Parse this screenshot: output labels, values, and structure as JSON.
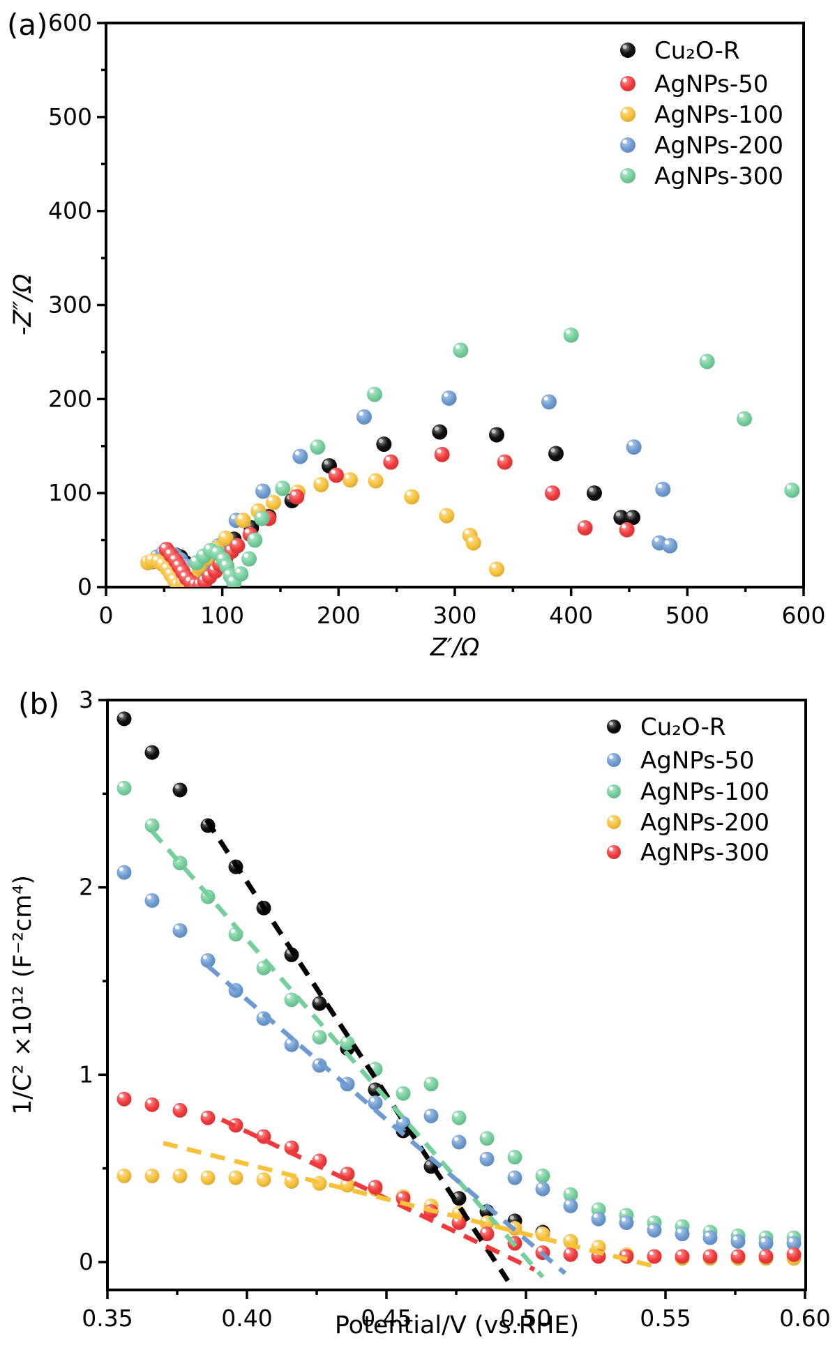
{
  "figure": {
    "background": "#ffffff",
    "panel_a_label": "(a)",
    "panel_b_label": "(b)"
  },
  "chart_data": [
    {
      "panel": "(a)",
      "type": "scatter",
      "xlabel": "Z′/Ω",
      "ylabel": "-Z″/Ω",
      "xlim": [
        0,
        600
      ],
      "ylim": [
        0,
        600
      ],
      "xticks": [
        "0",
        "100",
        "200",
        "300",
        "400",
        "500",
        "600"
      ],
      "yticks": [
        "0",
        "100",
        "200",
        "300",
        "400",
        "500",
        "600"
      ],
      "x_minor": [
        50,
        150,
        250,
        350,
        450,
        550
      ],
      "y_minor": [
        50,
        150,
        250,
        350,
        450,
        550
      ],
      "grid": false,
      "legend_position": "top-right",
      "legend_order": [
        0,
        1,
        2,
        3,
        4
      ],
      "draw_order": [
        0,
        3,
        2,
        1,
        4
      ],
      "series": [
        {
          "name": "Cu₂O-R",
          "color": "#000000",
          "points": [
            [
              50,
              26
            ],
            [
              55,
              31
            ],
            [
              60,
              34
            ],
            [
              64,
              32
            ],
            [
              68,
              26
            ],
            [
              71,
              18
            ],
            [
              74,
              10
            ],
            [
              77,
              4
            ],
            [
              80,
              2
            ],
            [
              84,
              4
            ],
            [
              89,
              12
            ],
            [
              94,
              22
            ],
            [
              99,
              32
            ],
            [
              104,
              42
            ],
            [
              110,
              51
            ],
            [
              125,
              63
            ],
            [
              140,
              75
            ],
            [
              160,
              92
            ],
            [
              192,
              129
            ],
            [
              239,
              152
            ],
            [
              287,
              165
            ],
            [
              336,
              162
            ],
            [
              387,
              142
            ],
            [
              420,
              100
            ],
            [
              443,
              74
            ],
            [
              453,
              74
            ]
          ]
        },
        {
          "name": "AgNPs-50",
          "color": "#F0393B",
          "points": [
            [
              52,
              40
            ],
            [
              56,
              34
            ],
            [
              60,
              28
            ],
            [
              63,
              22
            ],
            [
              66,
              16
            ],
            [
              69,
              10
            ],
            [
              73,
              5
            ],
            [
              77,
              2
            ],
            [
              81,
              2
            ],
            [
              85,
              6
            ],
            [
              89,
              11
            ],
            [
              94,
              17
            ],
            [
              98,
              24
            ],
            [
              103,
              31
            ],
            [
              108,
              38
            ],
            [
              113,
              44
            ],
            [
              124,
              56
            ],
            [
              140,
              73
            ],
            [
              164,
              96
            ],
            [
              198,
              119
            ],
            [
              245,
              133
            ],
            [
              289,
              141
            ],
            [
              343,
              133
            ],
            [
              384,
              100
            ],
            [
              412,
              63
            ],
            [
              448,
              61
            ]
          ]
        },
        {
          "name": "AgNPs-100",
          "color": "#F7C13A",
          "points": [
            [
              36,
              26
            ],
            [
              40,
              28
            ],
            [
              45,
              27
            ],
            [
              49,
              24
            ],
            [
              53,
              19
            ],
            [
              56,
              13
            ],
            [
              59,
              7
            ],
            [
              62,
              2
            ],
            [
              66,
              4
            ],
            [
              70,
              9
            ],
            [
              75,
              15
            ],
            [
              80,
              22
            ],
            [
              87,
              31
            ],
            [
              95,
              41
            ],
            [
              103,
              52
            ],
            [
              118,
              71
            ],
            [
              131,
              81
            ],
            [
              144,
              90
            ],
            [
              165,
              101
            ],
            [
              185,
              109
            ],
            [
              210,
              114
            ],
            [
              232,
              113
            ],
            [
              263,
              96
            ],
            [
              293,
              76
            ],
            [
              313,
              55
            ],
            [
              316,
              47
            ],
            [
              336,
              19
            ]
          ]
        },
        {
          "name": "AgNPs-200",
          "color": "#6D9BD1",
          "points": [
            [
              40,
              27
            ],
            [
              44,
              32
            ],
            [
              49,
              36
            ],
            [
              54,
              37
            ],
            [
              59,
              34
            ],
            [
              64,
              29
            ],
            [
              70,
              22
            ],
            [
              77,
              16
            ],
            [
              85,
              24
            ],
            [
              97,
              44
            ],
            [
              112,
              71
            ],
            [
              135,
              102
            ],
            [
              167,
              139
            ],
            [
              222,
              181
            ],
            [
              295,
              201
            ],
            [
              381,
              197
            ],
            [
              454,
              149
            ],
            [
              479,
              104
            ],
            [
              476,
              47
            ],
            [
              485,
              44
            ]
          ]
        },
        {
          "name": "AgNPs-300",
          "color": "#74CF9C",
          "points": [
            [
              78,
              26
            ],
            [
              84,
              33
            ],
            [
              90,
              39
            ],
            [
              96,
              36
            ],
            [
              101,
              29
            ],
            [
              104,
              22
            ],
            [
              107,
              12
            ],
            [
              110,
              5
            ],
            [
              116,
              14
            ],
            [
              123,
              30
            ],
            [
              128,
              50
            ],
            [
              134,
              73
            ],
            [
              152,
              105
            ],
            [
              182,
              149
            ],
            [
              231,
              205
            ],
            [
              305,
              252
            ],
            [
              400,
              268
            ],
            [
              517,
              240
            ],
            [
              549,
              179
            ],
            [
              590,
              103
            ]
          ]
        }
      ]
    },
    {
      "panel": "(b)",
      "type": "scatter",
      "xlabel": "Potential/V (vs.RHE)",
      "ylabel": "1/C² ×10¹²  (F⁻²cm⁴)",
      "xlim": [
        0.35,
        0.6
      ],
      "ylim": [
        -0.15,
        3
      ],
      "xticks": [
        "0.35",
        "0.40",
        "0.45",
        "0.50",
        "0.55",
        "0.60"
      ],
      "yticks": [
        "0",
        "1",
        "2",
        "3"
      ],
      "x_minor": [
        0.375,
        0.425,
        0.475,
        0.525,
        0.575
      ],
      "y_minor": [
        0.5,
        1.5,
        2.5
      ],
      "grid": false,
      "legend_position": "top-right",
      "legend_order": [
        0,
        1,
        2,
        3,
        4
      ],
      "draw_order": [
        0,
        2,
        3,
        1,
        4
      ],
      "series": [
        {
          "name": "Cu₂O-R",
          "color": "#000000",
          "points": [
            [
              0.356,
              2.9
            ],
            [
              0.366,
              2.72
            ],
            [
              0.376,
              2.52
            ],
            [
              0.386,
              2.33
            ],
            [
              0.396,
              2.11
            ],
            [
              0.406,
              1.89
            ],
            [
              0.416,
              1.64
            ],
            [
              0.426,
              1.38
            ],
            [
              0.436,
              1.14
            ],
            [
              0.446,
              0.92
            ],
            [
              0.456,
              0.7
            ],
            [
              0.466,
              0.51
            ],
            [
              0.476,
              0.34
            ],
            [
              0.486,
              0.27
            ],
            [
              0.496,
              0.22
            ],
            [
              0.506,
              0.16
            ],
            [
              0.516,
              0.11
            ]
          ]
        },
        {
          "name": "AgNPs-50",
          "color": "#6D9BD1",
          "points": [
            [
              0.356,
              2.08
            ],
            [
              0.366,
              1.93
            ],
            [
              0.376,
              1.77
            ],
            [
              0.386,
              1.61
            ],
            [
              0.396,
              1.45
            ],
            [
              0.406,
              1.3
            ],
            [
              0.416,
              1.16
            ],
            [
              0.426,
              1.05
            ],
            [
              0.436,
              0.95
            ],
            [
              0.446,
              0.85
            ],
            [
              0.456,
              0.74
            ],
            [
              0.466,
              0.78
            ],
            [
              0.476,
              0.64
            ],
            [
              0.486,
              0.55
            ],
            [
              0.496,
              0.45
            ],
            [
              0.506,
              0.39
            ],
            [
              0.516,
              0.3
            ],
            [
              0.526,
              0.23
            ],
            [
              0.536,
              0.21
            ],
            [
              0.546,
              0.17
            ],
            [
              0.556,
              0.15
            ],
            [
              0.566,
              0.13
            ],
            [
              0.576,
              0.11
            ],
            [
              0.586,
              0.1
            ],
            [
              0.596,
              0.1
            ]
          ]
        },
        {
          "name": "AgNPs-100",
          "color": "#74CF9C",
          "points": [
            [
              0.356,
              2.53
            ],
            [
              0.366,
              2.33
            ],
            [
              0.376,
              2.13
            ],
            [
              0.386,
              1.95
            ],
            [
              0.396,
              1.75
            ],
            [
              0.406,
              1.57
            ],
            [
              0.416,
              1.4
            ],
            [
              0.426,
              1.2
            ],
            [
              0.436,
              1.17
            ],
            [
              0.446,
              1.03
            ],
            [
              0.456,
              0.9
            ],
            [
              0.466,
              0.95
            ],
            [
              0.476,
              0.77
            ],
            [
              0.486,
              0.66
            ],
            [
              0.496,
              0.56
            ],
            [
              0.506,
              0.46
            ],
            [
              0.516,
              0.36
            ],
            [
              0.526,
              0.28
            ],
            [
              0.536,
              0.25
            ],
            [
              0.546,
              0.21
            ],
            [
              0.556,
              0.19
            ],
            [
              0.566,
              0.16
            ],
            [
              0.576,
              0.14
            ],
            [
              0.586,
              0.13
            ],
            [
              0.596,
              0.13
            ]
          ]
        },
        {
          "name": "AgNPs-200",
          "color": "#F7C13A",
          "points": [
            [
              0.356,
              0.46
            ],
            [
              0.366,
              0.46
            ],
            [
              0.376,
              0.46
            ],
            [
              0.386,
              0.45
            ],
            [
              0.396,
              0.45
            ],
            [
              0.406,
              0.44
            ],
            [
              0.416,
              0.43
            ],
            [
              0.426,
              0.42
            ],
            [
              0.436,
              0.41
            ],
            [
              0.446,
              0.39
            ],
            [
              0.456,
              0.35
            ],
            [
              0.466,
              0.3
            ],
            [
              0.476,
              0.26
            ],
            [
              0.486,
              0.21
            ],
            [
              0.496,
              0.18
            ],
            [
              0.506,
              0.15
            ],
            [
              0.516,
              0.11
            ],
            [
              0.526,
              0.08
            ],
            [
              0.536,
              0.04
            ],
            [
              0.546,
              0.03
            ],
            [
              0.556,
              0.02
            ],
            [
              0.566,
              0.02
            ],
            [
              0.576,
              0.02
            ],
            [
              0.586,
              0.02
            ],
            [
              0.596,
              0.02
            ]
          ]
        },
        {
          "name": "AgNPs-300",
          "color": "#F0393B",
          "points": [
            [
              0.356,
              0.87
            ],
            [
              0.366,
              0.84
            ],
            [
              0.376,
              0.81
            ],
            [
              0.386,
              0.77
            ],
            [
              0.396,
              0.73
            ],
            [
              0.406,
              0.67
            ],
            [
              0.416,
              0.61
            ],
            [
              0.426,
              0.54
            ],
            [
              0.436,
              0.47
            ],
            [
              0.446,
              0.4
            ],
            [
              0.456,
              0.34
            ],
            [
              0.466,
              0.27
            ],
            [
              0.476,
              0.21
            ],
            [
              0.486,
              0.15
            ],
            [
              0.496,
              0.1
            ],
            [
              0.506,
              0.05
            ],
            [
              0.516,
              0.04
            ],
            [
              0.526,
              0.03
            ],
            [
              0.536,
              0.03
            ],
            [
              0.546,
              0.03
            ],
            [
              0.556,
              0.03
            ],
            [
              0.566,
              0.03
            ],
            [
              0.576,
              0.03
            ],
            [
              0.586,
              0.03
            ],
            [
              0.596,
              0.04
            ]
          ]
        }
      ],
      "fit_lines": [
        {
          "series": "Cu₂O-R",
          "color": "#000000",
          "from": [
            0.3855,
            2.36
          ],
          "to": [
            0.4935,
            -0.1
          ]
        },
        {
          "series": "AgNPs-100",
          "color": "#74CF9C",
          "from": [
            0.366,
            2.3
          ],
          "to": [
            0.506,
            -0.08
          ]
        },
        {
          "series": "AgNPs-50",
          "color": "#6D9BD1",
          "from": [
            0.386,
            1.58
          ],
          "to": [
            0.514,
            -0.06
          ]
        },
        {
          "series": "AgNPs-300",
          "color": "#F0393B",
          "from": [
            0.391,
            0.76
          ],
          "to": [
            0.503,
            -0.04
          ]
        },
        {
          "series": "AgNPs-200",
          "color": "#F7C13A",
          "from": [
            0.37,
            0.635
          ],
          "to": [
            0.548,
            -0.03
          ]
        }
      ]
    }
  ]
}
